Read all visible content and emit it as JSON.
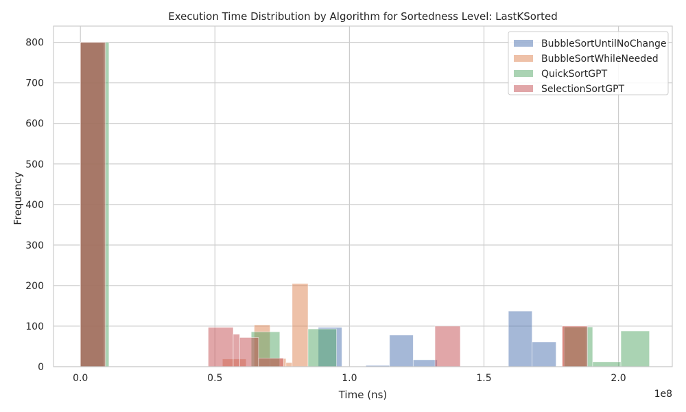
{
  "chart_data": {
    "type": "histogram",
    "title": "Execution Time Distribution by Algorithm for Sortedness Level: LastKSorted",
    "xlabel": "Time (ns)",
    "ylabel": "Frequency",
    "x_offset_label": "1e8",
    "xlim": [
      -0.1,
      2.2
    ],
    "ylim": [
      0,
      840
    ],
    "x_ticks": [
      0.0,
      0.5,
      1.0,
      1.5,
      2.0
    ],
    "x_tick_labels": [
      "0.0",
      "0.5",
      "1.0",
      "1.5",
      "2.0"
    ],
    "y_ticks": [
      0,
      100,
      200,
      300,
      400,
      500,
      600,
      700,
      800
    ],
    "y_tick_labels": [
      "0",
      "100",
      "200",
      "300",
      "400",
      "500",
      "600",
      "700",
      "800"
    ],
    "x_units_note": "bin edges in units of 1e8 ns",
    "grid": true,
    "legend_position": "top-right",
    "series": [
      {
        "name": "BubbleSortUntilNoChange",
        "color": "#4c72b0",
        "bins": [
          {
            "x0": 0.0,
            "x1": 0.088,
            "count": 800
          },
          {
            "x0": 0.884,
            "x1": 0.972,
            "count": 97
          },
          {
            "x0": 1.061,
            "x1": 1.149,
            "count": 3
          },
          {
            "x0": 1.149,
            "x1": 1.237,
            "count": 78
          },
          {
            "x0": 1.237,
            "x1": 1.326,
            "count": 17
          },
          {
            "x0": 1.591,
            "x1": 1.679,
            "count": 137
          },
          {
            "x0": 1.679,
            "x1": 1.768,
            "count": 61
          }
        ]
      },
      {
        "name": "BubbleSortWhileNeeded",
        "color": "#dd8452",
        "bins": [
          {
            "x0": 0.0,
            "x1": 0.087,
            "count": 800
          },
          {
            "x0": 0.528,
            "x1": 0.616,
            "count": 19
          },
          {
            "x0": 0.646,
            "x1": 0.705,
            "count": 103
          },
          {
            "x0": 0.705,
            "x1": 0.764,
            "count": 20
          },
          {
            "x0": 0.764,
            "x1": 0.787,
            "count": 10
          },
          {
            "x0": 0.787,
            "x1": 0.846,
            "count": 205
          },
          {
            "x0": 1.791,
            "x1": 1.879,
            "count": 100
          }
        ]
      },
      {
        "name": "QuickSortGPT",
        "color": "#55a868",
        "bins": [
          {
            "x0": 0.0,
            "x1": 0.106,
            "count": 800
          },
          {
            "x0": 0.635,
            "x1": 0.741,
            "count": 86
          },
          {
            "x0": 0.846,
            "x1": 0.952,
            "count": 93
          },
          {
            "x0": 1.798,
            "x1": 1.904,
            "count": 98
          },
          {
            "x0": 1.904,
            "x1": 2.009,
            "count": 12
          },
          {
            "x0": 2.009,
            "x1": 2.115,
            "count": 88
          }
        ]
      },
      {
        "name": "SelectionSortGPT",
        "color": "#c44e52",
        "bins": [
          {
            "x0": 0.0,
            "x1": 0.093,
            "count": 800
          },
          {
            "x0": 0.475,
            "x1": 0.568,
            "count": 97
          },
          {
            "x0": 0.568,
            "x1": 0.592,
            "count": 80
          },
          {
            "x0": 0.592,
            "x1": 0.662,
            "count": 72
          },
          {
            "x0": 0.662,
            "x1": 0.755,
            "count": 21
          },
          {
            "x0": 1.318,
            "x1": 1.412,
            "count": 100
          },
          {
            "x0": 1.791,
            "x1": 1.885,
            "count": 100
          }
        ]
      }
    ]
  }
}
